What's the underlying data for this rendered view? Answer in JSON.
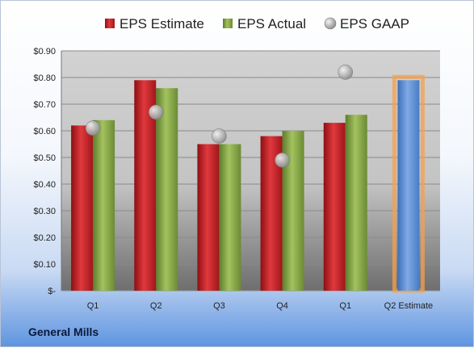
{
  "footer": {
    "company": "General Mills"
  },
  "chart_data": {
    "type": "bar",
    "categories": [
      "Q1",
      "Q2",
      "Q3",
      "Q4",
      "Q1",
      "Q2 Estimate"
    ],
    "series": [
      {
        "name": "EPS Estimate",
        "values": [
          0.62,
          0.79,
          0.55,
          0.58,
          0.63,
          null
        ],
        "color": "#c0262b"
      },
      {
        "name": "EPS Actual",
        "values": [
          0.64,
          0.76,
          0.55,
          0.6,
          0.66,
          null
        ],
        "color": "#86a84a"
      },
      {
        "name": "EPS GAAP",
        "type": "scatter",
        "values": [
          0.61,
          0.67,
          0.58,
          0.49,
          0.82,
          null
        ],
        "color": "#a9a9a9"
      },
      {
        "name": "",
        "values": [
          null,
          null,
          null,
          null,
          null,
          0.79
        ],
        "color": "#5b8ed8",
        "highlight": "#f5a04a"
      }
    ],
    "ylim": [
      0,
      0.9
    ],
    "yticks": [
      0,
      0.1,
      0.2,
      0.3,
      0.4,
      0.5,
      0.6,
      0.7,
      0.8,
      0.9
    ],
    "ytick_labels": [
      "$-",
      "$0.10",
      "$0.20",
      "$0.30",
      "$0.40",
      "$0.50",
      "$0.60",
      "$0.70",
      "$0.80",
      "$0.90"
    ],
    "grid": true,
    "legend": "top"
  }
}
